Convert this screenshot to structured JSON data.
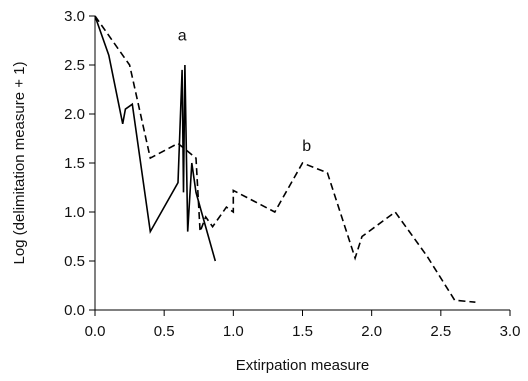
{
  "chart_data": {
    "type": "line",
    "xlabel": "Extirpation measure",
    "ylabel": "Log (delimitation measure + 1)",
    "xlim": [
      0,
      3
    ],
    "ylim": [
      0,
      3
    ],
    "x_ticks": [
      "0.0",
      "0.5",
      "1.0",
      "1.5",
      "2.0",
      "2.5",
      "3.0"
    ],
    "y_ticks": [
      "0.0",
      "0.5",
      "1.0",
      "1.5",
      "2.0",
      "2.5",
      "3.0"
    ],
    "grid": false,
    "series": [
      {
        "name": "a",
        "style": "solid",
        "color": "#000000",
        "x": [
          0.0,
          0.1,
          0.2,
          0.22,
          0.27,
          0.4,
          0.6,
          0.63,
          0.64,
          0.65,
          0.67,
          0.7,
          0.73,
          0.77,
          0.87
        ],
        "y": [
          3.0,
          2.6,
          1.9,
          2.05,
          2.1,
          0.8,
          1.3,
          2.45,
          1.2,
          2.5,
          0.8,
          1.5,
          1.2,
          1.0,
          0.5
        ]
      },
      {
        "name": "b",
        "style": "dashed",
        "color": "#000000",
        "x": [
          0.0,
          0.25,
          0.4,
          0.6,
          0.73,
          0.76,
          0.8,
          0.85,
          0.95,
          1.0,
          1.0,
          1.3,
          1.5,
          1.68,
          1.88,
          1.93,
          2.17,
          2.4,
          2.6,
          2.75
        ],
        "y": [
          3.0,
          2.5,
          1.55,
          1.7,
          1.55,
          0.8,
          0.95,
          0.85,
          1.05,
          1.0,
          1.22,
          1.0,
          1.5,
          1.4,
          0.53,
          0.75,
          1.0,
          0.55,
          0.1,
          0.08
        ]
      }
    ],
    "annotations": [
      {
        "text": "a",
        "x": 0.63,
        "y": 2.75
      },
      {
        "text": "b",
        "x": 1.53,
        "y": 1.62
      }
    ]
  }
}
